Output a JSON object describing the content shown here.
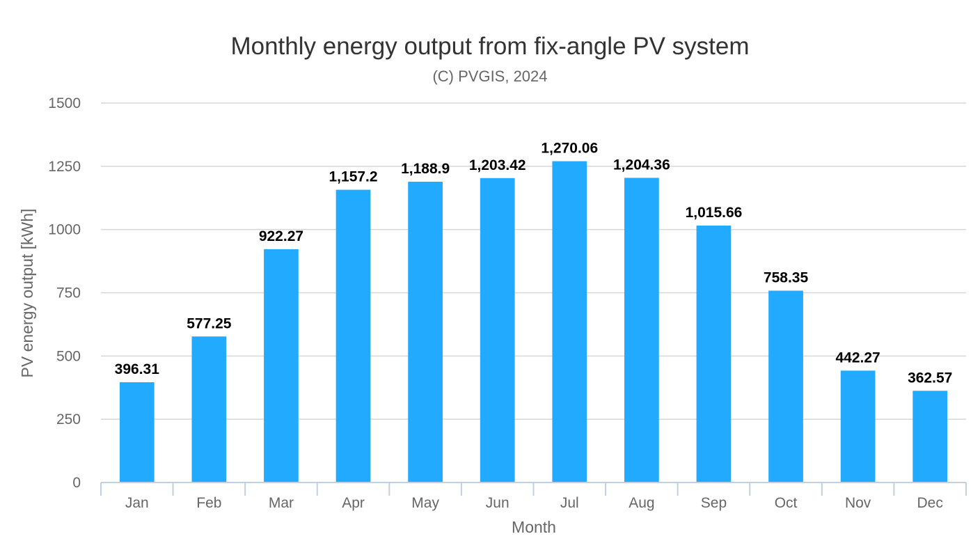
{
  "chart_data": {
    "type": "bar",
    "title": "Monthly energy output from fix-angle PV system",
    "subtitle": "(C) PVGIS, 2024",
    "xlabel": "Month",
    "ylabel": "PV energy output [kWh]",
    "ylim": [
      0,
      1500
    ],
    "yticks": [
      "0",
      "250",
      "500",
      "750",
      "1000",
      "1250",
      "1500"
    ],
    "ytick_values": [
      0,
      250,
      500,
      750,
      1000,
      1250,
      1500
    ],
    "categories": [
      "Jan",
      "Feb",
      "Mar",
      "Apr",
      "May",
      "Jun",
      "Jul",
      "Aug",
      "Sep",
      "Oct",
      "Nov",
      "Dec"
    ],
    "values": [
      396.31,
      577.25,
      922.27,
      1157.2,
      1188.9,
      1203.42,
      1270.06,
      1204.36,
      1015.66,
      758.35,
      442.27,
      362.57
    ],
    "data_labels": [
      "396.31",
      "577.25",
      "922.27",
      "1,157.2",
      "1,188.9",
      "1,203.42",
      "1,270.06",
      "1,204.36",
      "1,015.66",
      "758.35",
      "442.27",
      "362.57"
    ],
    "grid": true,
    "legend": "none",
    "bar_color": "#22aaff"
  }
}
